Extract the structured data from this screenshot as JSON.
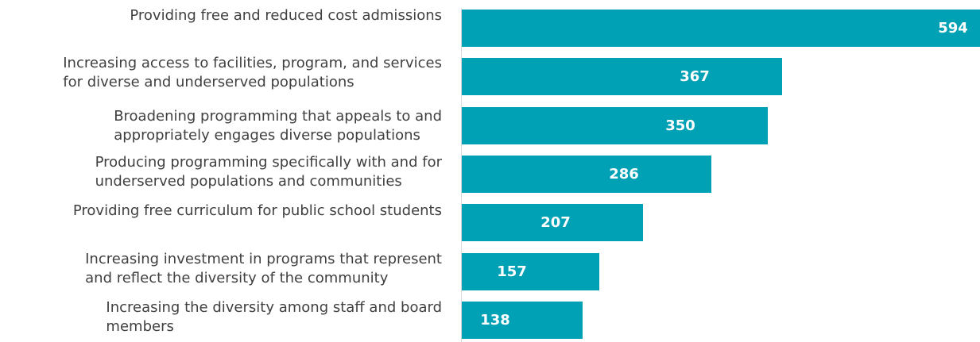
{
  "chart_data": {
    "type": "bar",
    "orientation": "horizontal",
    "categories": [
      [
        "Providing free and reduced cost admissions"
      ],
      [
        "Increasing access to facilities, program, and services",
        "for diverse and underserved populations"
      ],
      [
        "Broadening programming that appeals to and",
        "appropriately engages diverse populations"
      ],
      [
        "Producing programming specifically with and for",
        "underserved populations and communities"
      ],
      [
        "Providing free curriculum for public school students"
      ],
      [
        "Increasing investment in programs that represent",
        "and reflect the diversity of the community"
      ],
      [
        "Increasing the diversity among staff and board",
        "members"
      ]
    ],
    "values": [
      594,
      367,
      350,
      286,
      207,
      157,
      138
    ],
    "value_labels": [
      "594",
      "367",
      "350",
      "286",
      "207",
      "157",
      "138"
    ],
    "xlim": [
      0,
      594
    ],
    "bar_color": "#00A0B5",
    "label_color": "#404040",
    "value_label_color": "#FFFFFF",
    "grid": false,
    "legend": "none"
  }
}
